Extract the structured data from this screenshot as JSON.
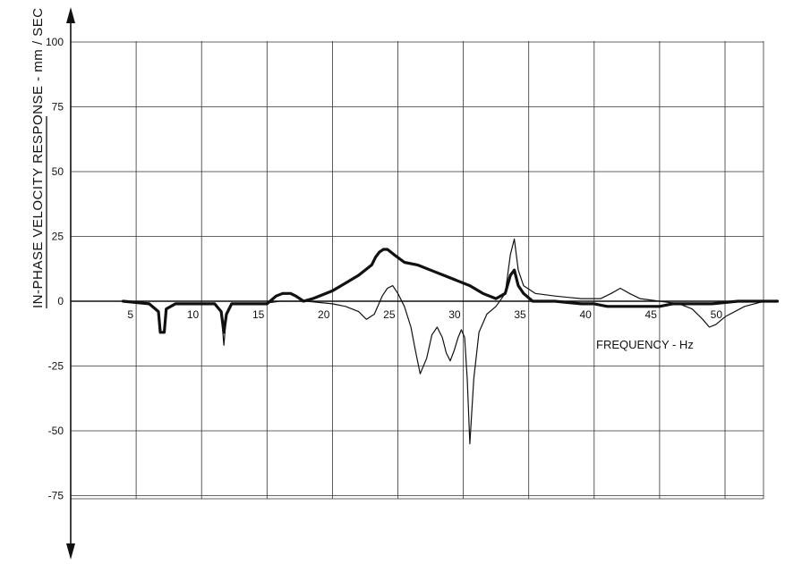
{
  "chart_data": {
    "type": "line",
    "title": "",
    "xlabel": "FREQUENCY - Hz",
    "ylabel": "IN-PHASE VELOCITY RESPONSE - mm / SEC",
    "xlim": [
      0,
      54
    ],
    "ylim": [
      -75,
      100
    ],
    "x_ticks": [
      5,
      10,
      15,
      20,
      25,
      30,
      35,
      40,
      45,
      50
    ],
    "x_tick_labels": [
      "5",
      "10",
      "15",
      "20",
      "25",
      "30",
      "35",
      "40",
      "45",
      "50"
    ],
    "y_ticks": [
      100,
      75,
      50,
      25,
      0,
      -25,
      -50,
      -75
    ],
    "y_tick_labels": [
      "100",
      "75",
      "50",
      "25",
      "0",
      "-25",
      "-50",
      "-75"
    ],
    "grid": true,
    "legend": "none",
    "series": [
      {
        "style": "thick",
        "x": [
          4,
          6,
          6.7,
          6.85,
          7,
          7.15,
          7.3,
          8,
          10,
          11,
          11.5,
          11.7,
          11.9,
          12.3,
          14.5,
          15,
          15.7,
          16.2,
          16.8,
          17.2,
          17.8,
          18.5,
          20,
          21,
          22,
          22.5,
          23,
          23.3,
          23.6,
          23.9,
          24.2,
          24.7,
          25.5,
          26.5,
          27.5,
          28.5,
          29.5,
          30.5,
          31.5,
          32.5,
          33.2,
          33.6,
          33.9,
          34.2,
          34.6,
          35.3,
          37,
          39,
          40,
          41,
          42,
          43,
          44,
          45,
          46,
          47.5,
          49,
          51,
          53,
          54
        ],
        "y": [
          0,
          -1,
          -4,
          -12,
          -12,
          -12,
          -3,
          -1,
          -1,
          -1,
          -4,
          -12,
          -5,
          -1,
          -1,
          -1,
          2,
          3,
          3,
          2,
          0,
          1,
          4,
          7,
          10,
          12,
          14,
          17,
          19,
          20,
          20,
          18,
          15,
          14,
          12,
          10,
          8,
          6,
          3,
          1,
          3,
          10,
          12,
          6,
          3,
          0,
          0,
          -1,
          -1,
          -2,
          -2,
          -2,
          -2,
          -2,
          -1,
          -1,
          -1,
          0,
          0,
          0
        ]
      },
      {
        "style": "thin",
        "x": [
          4,
          6,
          6.7,
          6.9,
          7.1,
          7.3,
          8,
          10,
          11,
          11.5,
          11.7,
          11.9,
          12.3,
          14.5,
          16,
          18,
          20,
          21,
          22,
          22.6,
          23.2,
          23.8,
          24.2,
          24.6,
          25,
          25.5,
          26,
          26.3,
          26.7,
          27.2,
          27.6,
          28,
          28.4,
          28.7,
          29,
          29.3,
          29.6,
          29.85,
          30.1,
          30.3,
          30.5,
          30.8,
          31.2,
          31.8,
          32.5,
          33.2,
          33.6,
          33.9,
          34.2,
          34.6,
          35.5,
          37,
          39,
          40.5,
          41.3,
          42,
          42.7,
          43.5,
          45,
          46.5,
          47.5,
          48.3,
          48.8,
          49.3,
          50,
          51.5,
          53,
          54
        ],
        "y": [
          0,
          -1,
          -4,
          -12,
          -12,
          -3,
          -1,
          -1,
          -1,
          -4,
          -17,
          -5,
          -1,
          -1,
          0,
          0,
          -1,
          -2,
          -4,
          -7,
          -5,
          2,
          5,
          6,
          3,
          -2,
          -10,
          -18,
          -28,
          -22,
          -13,
          -10,
          -14,
          -20,
          -23,
          -19,
          -14,
          -11,
          -14,
          -30,
          -55,
          -30,
          -12,
          -5,
          -2,
          3,
          18,
          24,
          12,
          6,
          3,
          2,
          1,
          1,
          3,
          5,
          3,
          1,
          0,
          -1,
          -3,
          -7,
          -10,
          -9,
          -6,
          -2,
          0,
          0
        ]
      }
    ]
  }
}
